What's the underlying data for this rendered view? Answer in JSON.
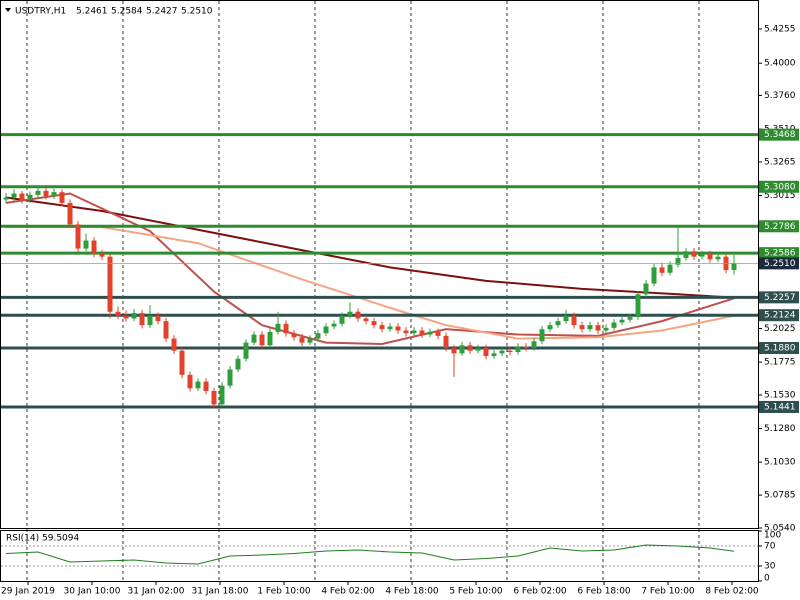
{
  "chart_data": {
    "type": "candlestick",
    "header": {
      "symbol": "USDTRY,H1",
      "ohlc_labels": [
        "5.2461",
        "5.2584",
        "5.2427",
        "5.2510"
      ]
    },
    "up_color": "#2e9e3a",
    "down_color": "#e4412a",
    "ylim": [
      5.054,
      5.4463
    ],
    "yticks": [
      5.4255,
      {
        "value": 5.4,
        "label": "5.4000"
      },
      {
        "value": 5.376,
        "label": "5.3760"
      },
      {
        "value": 5.351,
        "label": "5.3510"
      },
      5.3265,
      5.3015,
      5.2025,
      5.1775,
      {
        "value": 5.153,
        "label": "5.1530"
      },
      {
        "value": 5.128,
        "label": "5.1280"
      },
      {
        "value": 5.103,
        "label": "5.1030"
      },
      5.0785,
      {
        "value": 5.054,
        "label": "5.0540"
      }
    ],
    "xtick_labels": [
      "29 Jan 2019",
      "30 Jan 10:00",
      "31 Jan 02:00",
      "31 Jan 18:00",
      "1 Feb 10:00",
      "4 Feb 02:00",
      "4 Feb 18:00",
      "5 Feb 10:00",
      "6 Feb 02:00",
      "6 Feb 18:00",
      "7 Feb 10:00",
      "8 Feb 02:00"
    ],
    "levels": [
      {
        "value": 5.3468,
        "color": "#2e8b2e"
      },
      {
        "value": 5.308,
        "label": "5.3080",
        "color": "#2e8b2e"
      },
      {
        "value": 5.2786,
        "color": "#2e8b2e"
      },
      {
        "value": 5.2586,
        "color": "#2e8b2e"
      },
      {
        "value": 5.2257,
        "color": "#2f4f4f"
      },
      {
        "value": 5.2124,
        "color": "#2f4f4f"
      },
      {
        "value": 5.188,
        "label": "5.1880",
        "color": "#2f4f4f"
      },
      {
        "value": 5.1441,
        "color": "#2f4f4f"
      }
    ],
    "candles": [
      [
        5.2985,
        5.3035,
        5.296,
        5.3
      ],
      [
        5.3,
        5.306,
        5.2975,
        5.303
      ],
      [
        5.303,
        5.305,
        5.2955,
        5.298
      ],
      [
        5.298,
        5.3045,
        5.296,
        5.302
      ],
      [
        5.302,
        5.308,
        5.2995,
        5.305
      ],
      [
        5.305,
        5.307,
        5.2985,
        5.301
      ],
      [
        5.301,
        5.3065,
        5.299,
        5.304
      ],
      [
        5.304,
        5.306,
        5.2935,
        5.296
      ],
      [
        5.296,
        5.2985,
        5.2775,
        5.28
      ],
      [
        5.28,
        5.2825,
        5.2595,
        5.262
      ],
      [
        5.262,
        5.273,
        5.26,
        5.268
      ],
      [
        5.268,
        5.2705,
        5.2555,
        5.258
      ],
      [
        5.258,
        5.261,
        5.2535,
        5.256
      ],
      [
        5.256,
        5.2585,
        5.21,
        5.215
      ],
      [
        5.215,
        5.219,
        5.2095,
        5.212
      ],
      [
        5.212,
        5.216,
        5.2075,
        5.21
      ],
      [
        5.21,
        5.217,
        5.208,
        5.214
      ],
      [
        5.214,
        5.2165,
        5.2025,
        5.205
      ],
      [
        5.205,
        5.22,
        5.203,
        5.212
      ],
      [
        5.212,
        5.2145,
        5.2055,
        5.208
      ],
      [
        5.208,
        5.2105,
        5.1925,
        5.195
      ],
      [
        5.195,
        5.1975,
        5.1835,
        5.186
      ],
      [
        5.186,
        5.1885,
        5.1655,
        5.168
      ],
      [
        5.168,
        5.1705,
        5.1555,
        5.158
      ],
      [
        5.158,
        5.1655,
        5.156,
        5.163
      ],
      [
        5.163,
        5.1655,
        5.1535,
        5.156
      ],
      [
        5.156,
        5.1585,
        5.1441,
        5.146
      ],
      [
        5.146,
        5.1625,
        5.1445,
        5.16
      ],
      [
        5.16,
        5.1745,
        5.158,
        5.172
      ],
      [
        5.172,
        5.1825,
        5.17,
        5.18
      ],
      [
        5.18,
        5.1945,
        5.178,
        5.192
      ],
      [
        5.192,
        5.2005,
        5.19,
        5.198
      ],
      [
        5.198,
        5.2005,
        5.1875,
        5.19
      ],
      [
        5.19,
        5.2025,
        5.188,
        5.2
      ],
      [
        5.2,
        5.215,
        5.198,
        5.206
      ],
      [
        5.206,
        5.2085,
        5.1965,
        5.199
      ],
      [
        5.199,
        5.2015,
        5.1935,
        5.196
      ],
      [
        5.196,
        5.1985,
        5.1895,
        5.192
      ],
      [
        5.192,
        5.1975,
        5.19,
        5.195
      ],
      [
        5.195,
        5.2015,
        5.193,
        5.199
      ],
      [
        5.199,
        5.2065,
        5.197,
        5.204
      ],
      [
        5.204,
        5.2085,
        5.202,
        5.206
      ],
      [
        5.206,
        5.2145,
        5.204,
        5.212
      ],
      [
        5.212,
        5.222,
        5.21,
        5.215
      ],
      [
        5.215,
        5.2175,
        5.2075,
        5.21
      ],
      [
        5.21,
        5.2125,
        5.2055,
        5.208
      ],
      [
        5.208,
        5.2105,
        5.2025,
        5.205
      ],
      [
        5.205,
        5.2075,
        5.1995,
        5.202
      ],
      [
        5.202,
        5.2065,
        5.2,
        5.204
      ],
      [
        5.204,
        5.2065,
        5.1985,
        5.201
      ],
      [
        5.201,
        5.2035,
        5.1965,
        5.199
      ],
      [
        5.199,
        5.2035,
        5.197,
        5.201
      ],
      [
        5.201,
        5.2035,
        5.1955,
        5.198
      ],
      [
        5.198,
        5.2025,
        5.196,
        5.2
      ],
      [
        5.2,
        5.2025,
        5.1945,
        5.197
      ],
      [
        5.197,
        5.1995,
        5.1855,
        5.188
      ],
      [
        5.188,
        5.1905,
        5.1665,
        5.184
      ],
      [
        5.184,
        5.1925,
        5.182,
        5.19
      ],
      [
        5.19,
        5.1925,
        5.1835,
        5.186
      ],
      [
        5.186,
        5.1905,
        5.184,
        5.188
      ],
      [
        5.188,
        5.1905,
        5.1795,
        5.182
      ],
      [
        5.182,
        5.1865,
        5.18,
        5.184
      ],
      [
        5.184,
        5.1885,
        5.182,
        5.186
      ],
      [
        5.186,
        5.1885,
        5.1825,
        5.185
      ],
      [
        5.185,
        5.1915,
        5.183,
        5.189
      ],
      [
        5.189,
        5.1915,
        5.1855,
        5.188
      ],
      [
        5.188,
        5.1955,
        5.186,
        5.193
      ],
      [
        5.193,
        5.2045,
        5.191,
        5.202
      ],
      [
        5.202,
        5.2075,
        5.2,
        5.205
      ],
      [
        5.205,
        5.2105,
        5.203,
        5.208
      ],
      [
        5.208,
        5.2165,
        5.206,
        5.212
      ],
      [
        5.212,
        5.2145,
        5.2025,
        5.205
      ],
      [
        5.205,
        5.2075,
        5.1995,
        5.202
      ],
      [
        5.202,
        5.2075,
        5.2,
        5.205
      ],
      [
        5.205,
        5.2075,
        5.1985,
        5.201
      ],
      [
        5.201,
        5.2055,
        5.199,
        5.203
      ],
      [
        5.203,
        5.2095,
        5.201,
        5.207
      ],
      [
        5.207,
        5.2115,
        5.205,
        5.209
      ],
      [
        5.209,
        5.2135,
        5.207,
        5.211
      ],
      [
        5.211,
        5.2305,
        5.209,
        5.228
      ],
      [
        5.228,
        5.2385,
        5.226,
        5.236
      ],
      [
        5.236,
        5.2505,
        5.234,
        5.248
      ],
      [
        5.248,
        5.2515,
        5.2415,
        5.244
      ],
      [
        5.244,
        5.2525,
        5.242,
        5.25
      ],
      [
        5.25,
        5.2792,
        5.248,
        5.255
      ],
      [
        5.255,
        5.2625,
        5.253,
        5.26
      ],
      [
        5.26,
        5.2625,
        5.2535,
        5.256
      ],
      [
        5.256,
        5.2605,
        5.254,
        5.258
      ],
      [
        5.258,
        5.2605,
        5.2515,
        5.254
      ],
      [
        5.254,
        5.2585,
        5.252,
        5.256
      ],
      [
        5.256,
        5.2585,
        5.2435,
        5.246
      ],
      [
        5.2461,
        5.2584,
        5.2427,
        5.251
      ]
    ],
    "ma": [
      {
        "color": "#7b1010",
        "x": [
          0,
          12,
          24,
          36,
          48,
          60,
          72,
          84,
          91
        ],
        "values": [
          5.3,
          5.29,
          5.276,
          5.262,
          5.248,
          5.238,
          5.232,
          5.228,
          5.2255
        ]
      },
      {
        "color": "#c0504d",
        "x": [
          0,
          8,
          18,
          26,
          32,
          40,
          47,
          55,
          64,
          74,
          82,
          91
        ],
        "values": [
          5.296,
          5.303,
          5.275,
          5.23,
          5.205,
          5.192,
          5.191,
          5.202,
          5.198,
          5.197,
          5.208,
          5.225
        ]
      },
      {
        "color": "#f4a582",
        "x": [
          0,
          12,
          24,
          37,
          49,
          55,
          64,
          74,
          82,
          91
        ],
        "values": [
          5.278,
          5.278,
          5.266,
          5.239,
          5.216,
          5.205,
          5.195,
          5.196,
          5.201,
          5.212
        ]
      }
    ],
    "rsi": {
      "name": "RSI(14)",
      "color": "#1e7d1e",
      "ylim": [
        0,
        100
      ],
      "yticks": [
        100,
        70,
        30,
        0
      ],
      "levels": [
        70,
        30
      ],
      "x": [
        0,
        4,
        8,
        12,
        16,
        20,
        24,
        28,
        32,
        36,
        40,
        44,
        48,
        52,
        56,
        60,
        64,
        68,
        72,
        76,
        80,
        84,
        88,
        91
      ],
      "values": [
        55,
        58,
        38,
        40,
        42,
        36,
        34,
        50,
        52,
        55,
        60,
        62,
        58,
        56,
        42,
        45,
        50,
        66,
        60,
        62,
        72,
        70,
        66,
        59.5094
      ]
    }
  }
}
